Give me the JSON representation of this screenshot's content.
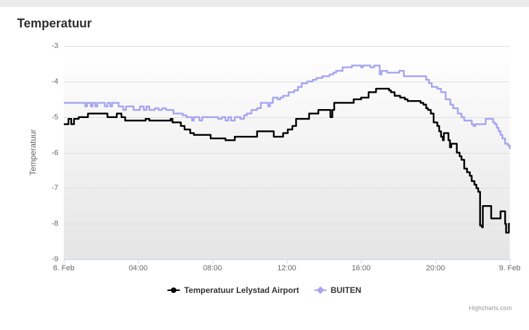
{
  "title": "Temperatuur",
  "credits": "Highcharts.com",
  "colors": {
    "series_black": "#000000",
    "series_purple": "#a5a5f2",
    "axis_line": "#ccd6eb",
    "label_gray": "#666666"
  },
  "chart_data": {
    "type": "line",
    "title": "Temperatuur",
    "xlabel": "",
    "ylabel": "Temperatuur",
    "xlim": [
      0,
      24
    ],
    "ylim": [
      -9,
      -3
    ],
    "grid": true,
    "legend_position": "bottom",
    "x_unit_note": "hours after 8. Feb 00:00",
    "x_ticks": [
      {
        "t": 0,
        "label": "8. Feb"
      },
      {
        "t": 4,
        "label": "04:00"
      },
      {
        "t": 8,
        "label": "08:00"
      },
      {
        "t": 12,
        "label": "12:00"
      },
      {
        "t": 16,
        "label": "16:00"
      },
      {
        "t": 20,
        "label": "20:00"
      },
      {
        "t": 24,
        "label": "9. Feb"
      }
    ],
    "y_ticks": [
      {
        "v": -3,
        "label": "-3"
      },
      {
        "v": -4,
        "label": "-4"
      },
      {
        "v": -5,
        "label": "-5"
      },
      {
        "v": -6,
        "label": "-6"
      },
      {
        "v": -7,
        "label": "-7"
      },
      {
        "v": -8,
        "label": "-8"
      },
      {
        "v": -9,
        "label": "-9"
      }
    ],
    "series": [
      {
        "name": "Temperatuur Lelystad Airport",
        "color": "#000000",
        "marker": "circle",
        "step": true,
        "points": [
          [
            0,
            -5.2
          ],
          [
            0.2,
            -5.2
          ],
          [
            0.25,
            -5.05
          ],
          [
            0.4,
            -5.2
          ],
          [
            0.55,
            -5.05
          ],
          [
            0.8,
            -5.0
          ],
          [
            1.3,
            -4.9
          ],
          [
            2.3,
            -4.9
          ],
          [
            2.35,
            -5.0
          ],
          [
            2.8,
            -5.0
          ],
          [
            2.85,
            -4.9
          ],
          [
            3.1,
            -5.0
          ],
          [
            3.3,
            -5.1
          ],
          [
            4.3,
            -5.1
          ],
          [
            4.4,
            -5.05
          ],
          [
            4.6,
            -5.1
          ],
          [
            5.7,
            -5.1
          ],
          [
            5.75,
            -5.05
          ],
          [
            5.85,
            -5.15
          ],
          [
            6.3,
            -5.25
          ],
          [
            6.5,
            -5.35
          ],
          [
            6.8,
            -5.45
          ],
          [
            7.0,
            -5.5
          ],
          [
            7.9,
            -5.6
          ],
          [
            8.6,
            -5.6
          ],
          [
            8.7,
            -5.65
          ],
          [
            9.1,
            -5.65
          ],
          [
            9.2,
            -5.55
          ],
          [
            10.3,
            -5.55
          ],
          [
            10.4,
            -5.4
          ],
          [
            11.2,
            -5.4
          ],
          [
            11.3,
            -5.55
          ],
          [
            11.7,
            -5.55
          ],
          [
            11.8,
            -5.45
          ],
          [
            12.0,
            -5.45
          ],
          [
            12.05,
            -5.35
          ],
          [
            12.3,
            -5.25
          ],
          [
            12.5,
            -5.05
          ],
          [
            13.2,
            -4.9
          ],
          [
            13.7,
            -4.8
          ],
          [
            14.3,
            -4.8
          ],
          [
            14.35,
            -5.0
          ],
          [
            14.45,
            -4.8
          ],
          [
            14.55,
            -4.6
          ],
          [
            15.5,
            -4.6
          ],
          [
            15.6,
            -4.5
          ],
          [
            16.0,
            -4.45
          ],
          [
            16.4,
            -4.3
          ],
          [
            16.8,
            -4.2
          ],
          [
            17.3,
            -4.2
          ],
          [
            17.5,
            -4.25
          ],
          [
            17.6,
            -4.3
          ],
          [
            17.8,
            -4.4
          ],
          [
            18.1,
            -4.45
          ],
          [
            18.35,
            -4.5
          ],
          [
            18.5,
            -4.55
          ],
          [
            19.2,
            -4.6
          ],
          [
            19.35,
            -4.65
          ],
          [
            19.5,
            -4.75
          ],
          [
            19.6,
            -4.8
          ],
          [
            19.75,
            -4.9
          ],
          [
            19.9,
            -5.15
          ],
          [
            20.1,
            -5.25
          ],
          [
            20.2,
            -5.4
          ],
          [
            20.3,
            -5.55
          ],
          [
            20.4,
            -5.65
          ],
          [
            20.45,
            -5.45
          ],
          [
            20.6,
            -5.45
          ],
          [
            20.7,
            -5.65
          ],
          [
            20.78,
            -5.85
          ],
          [
            20.85,
            -5.75
          ],
          [
            21.1,
            -5.75
          ],
          [
            21.15,
            -6.0
          ],
          [
            21.3,
            -6.1
          ],
          [
            21.4,
            -6.2
          ],
          [
            21.55,
            -6.45
          ],
          [
            21.7,
            -6.55
          ],
          [
            21.85,
            -6.65
          ],
          [
            21.95,
            -6.8
          ],
          [
            22.1,
            -6.9
          ],
          [
            22.2,
            -7.0
          ],
          [
            22.3,
            -7.1
          ],
          [
            22.4,
            -8.05
          ],
          [
            22.5,
            -8.1
          ],
          [
            22.55,
            -7.5
          ],
          [
            22.9,
            -7.5
          ],
          [
            23.0,
            -7.85
          ],
          [
            23.4,
            -7.85
          ],
          [
            23.5,
            -7.65
          ],
          [
            23.7,
            -7.65
          ],
          [
            23.75,
            -8.0
          ],
          [
            23.8,
            -8.25
          ],
          [
            23.95,
            -8.0
          ],
          [
            24,
            -8.0
          ]
        ]
      },
      {
        "name": "BUITEN",
        "color": "#a5a5f2",
        "marker": "diamond",
        "step": true,
        "points": [
          [
            0,
            -4.6
          ],
          [
            1.1,
            -4.6
          ],
          [
            1.15,
            -4.7
          ],
          [
            1.25,
            -4.6
          ],
          [
            1.45,
            -4.7
          ],
          [
            1.55,
            -4.6
          ],
          [
            1.7,
            -4.7
          ],
          [
            1.8,
            -4.6
          ],
          [
            2.2,
            -4.7
          ],
          [
            2.35,
            -4.6
          ],
          [
            2.5,
            -4.7
          ],
          [
            2.6,
            -4.6
          ],
          [
            2.95,
            -4.7
          ],
          [
            3.2,
            -4.8
          ],
          [
            3.35,
            -4.7
          ],
          [
            3.75,
            -4.8
          ],
          [
            4.1,
            -4.7
          ],
          [
            4.3,
            -4.8
          ],
          [
            4.45,
            -4.7
          ],
          [
            4.6,
            -4.8
          ],
          [
            4.9,
            -4.75
          ],
          [
            5.1,
            -4.8
          ],
          [
            5.3,
            -4.75
          ],
          [
            5.5,
            -4.8
          ],
          [
            5.9,
            -4.9
          ],
          [
            6.4,
            -4.95
          ],
          [
            6.6,
            -5.0
          ],
          [
            6.9,
            -5.1
          ],
          [
            7.0,
            -5.0
          ],
          [
            7.3,
            -5.1
          ],
          [
            7.45,
            -5.0
          ],
          [
            8.0,
            -5.0
          ],
          [
            8.3,
            -5.05
          ],
          [
            8.5,
            -5.0
          ],
          [
            8.7,
            -5.1
          ],
          [
            8.85,
            -5.0
          ],
          [
            9.0,
            -5.1
          ],
          [
            9.2,
            -5.0
          ],
          [
            9.5,
            -5.05
          ],
          [
            9.7,
            -4.95
          ],
          [
            9.85,
            -4.9
          ],
          [
            10.1,
            -4.8
          ],
          [
            10.4,
            -4.75
          ],
          [
            10.6,
            -4.6
          ],
          [
            10.9,
            -4.6
          ],
          [
            11.0,
            -4.7
          ],
          [
            11.1,
            -4.6
          ],
          [
            11.25,
            -4.45
          ],
          [
            11.5,
            -4.5
          ],
          [
            11.65,
            -4.45
          ],
          [
            11.8,
            -4.4
          ],
          [
            12.1,
            -4.3
          ],
          [
            12.4,
            -4.25
          ],
          [
            12.6,
            -4.15
          ],
          [
            12.8,
            -4.05
          ],
          [
            13.1,
            -4.0
          ],
          [
            13.4,
            -3.95
          ],
          [
            13.6,
            -3.9
          ],
          [
            13.9,
            -3.85
          ],
          [
            14.3,
            -3.8
          ],
          [
            14.5,
            -3.75
          ],
          [
            14.65,
            -3.7
          ],
          [
            15.0,
            -3.6
          ],
          [
            15.4,
            -3.6
          ],
          [
            15.5,
            -3.55
          ],
          [
            15.9,
            -3.55
          ],
          [
            16.0,
            -3.6
          ],
          [
            16.1,
            -3.55
          ],
          [
            16.5,
            -3.6
          ],
          [
            16.7,
            -3.55
          ],
          [
            17.0,
            -3.8
          ],
          [
            17.1,
            -3.7
          ],
          [
            17.4,
            -3.75
          ],
          [
            17.9,
            -3.75
          ],
          [
            18.05,
            -3.7
          ],
          [
            18.3,
            -3.85
          ],
          [
            19.35,
            -3.85
          ],
          [
            19.5,
            -3.95
          ],
          [
            19.65,
            -4.05
          ],
          [
            19.8,
            -4.15
          ],
          [
            20.1,
            -4.2
          ],
          [
            20.3,
            -4.3
          ],
          [
            20.55,
            -4.5
          ],
          [
            20.8,
            -4.65
          ],
          [
            20.95,
            -4.75
          ],
          [
            21.2,
            -4.9
          ],
          [
            21.4,
            -5.0
          ],
          [
            21.55,
            -5.1
          ],
          [
            21.95,
            -5.2
          ],
          [
            22.05,
            -5.25
          ],
          [
            22.15,
            -5.2
          ],
          [
            22.65,
            -5.2
          ],
          [
            22.7,
            -5.05
          ],
          [
            22.95,
            -5.05
          ],
          [
            23.1,
            -5.15
          ],
          [
            23.2,
            -5.2
          ],
          [
            23.3,
            -5.3
          ],
          [
            23.4,
            -5.4
          ],
          [
            23.5,
            -5.5
          ],
          [
            23.6,
            -5.6
          ],
          [
            23.75,
            -5.75
          ],
          [
            23.9,
            -5.8
          ],
          [
            24,
            -5.9
          ]
        ]
      }
    ]
  }
}
